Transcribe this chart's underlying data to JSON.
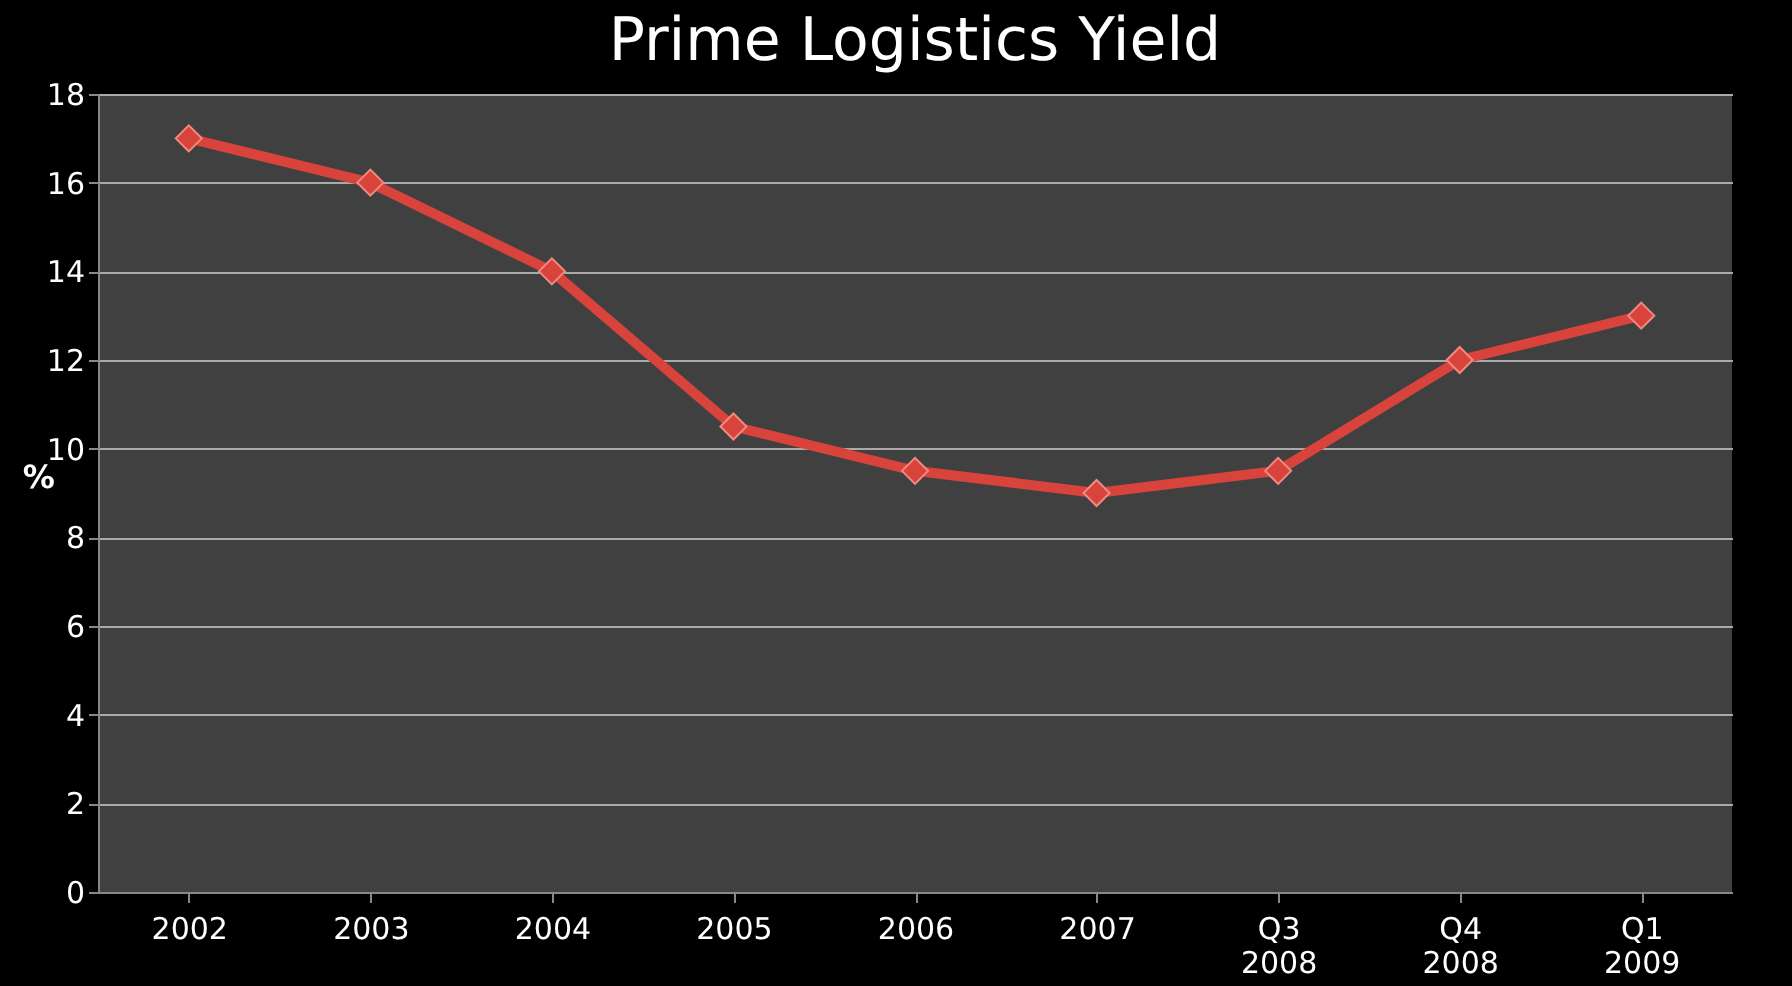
{
  "chart_data": {
    "type": "line",
    "title": "Prime Logistics Yield",
    "ylabel": "%",
    "categories": [
      "2002",
      "2003",
      "2004",
      "2005",
      "2006",
      "2007",
      "Q3 2008",
      "Q4 2008",
      "Q1 2009"
    ],
    "series": [
      {
        "color": "#d8433c",
        "values": [
          17,
          16,
          14,
          10.5,
          9.5,
          9,
          9.5,
          12,
          13
        ]
      }
    ],
    "ylim": [
      0,
      18
    ],
    "yticks": [
      0,
      2,
      4,
      6,
      8,
      10,
      12,
      14,
      16,
      18
    ],
    "grid": "y",
    "marker": "diamond",
    "line_style": "solid"
  }
}
